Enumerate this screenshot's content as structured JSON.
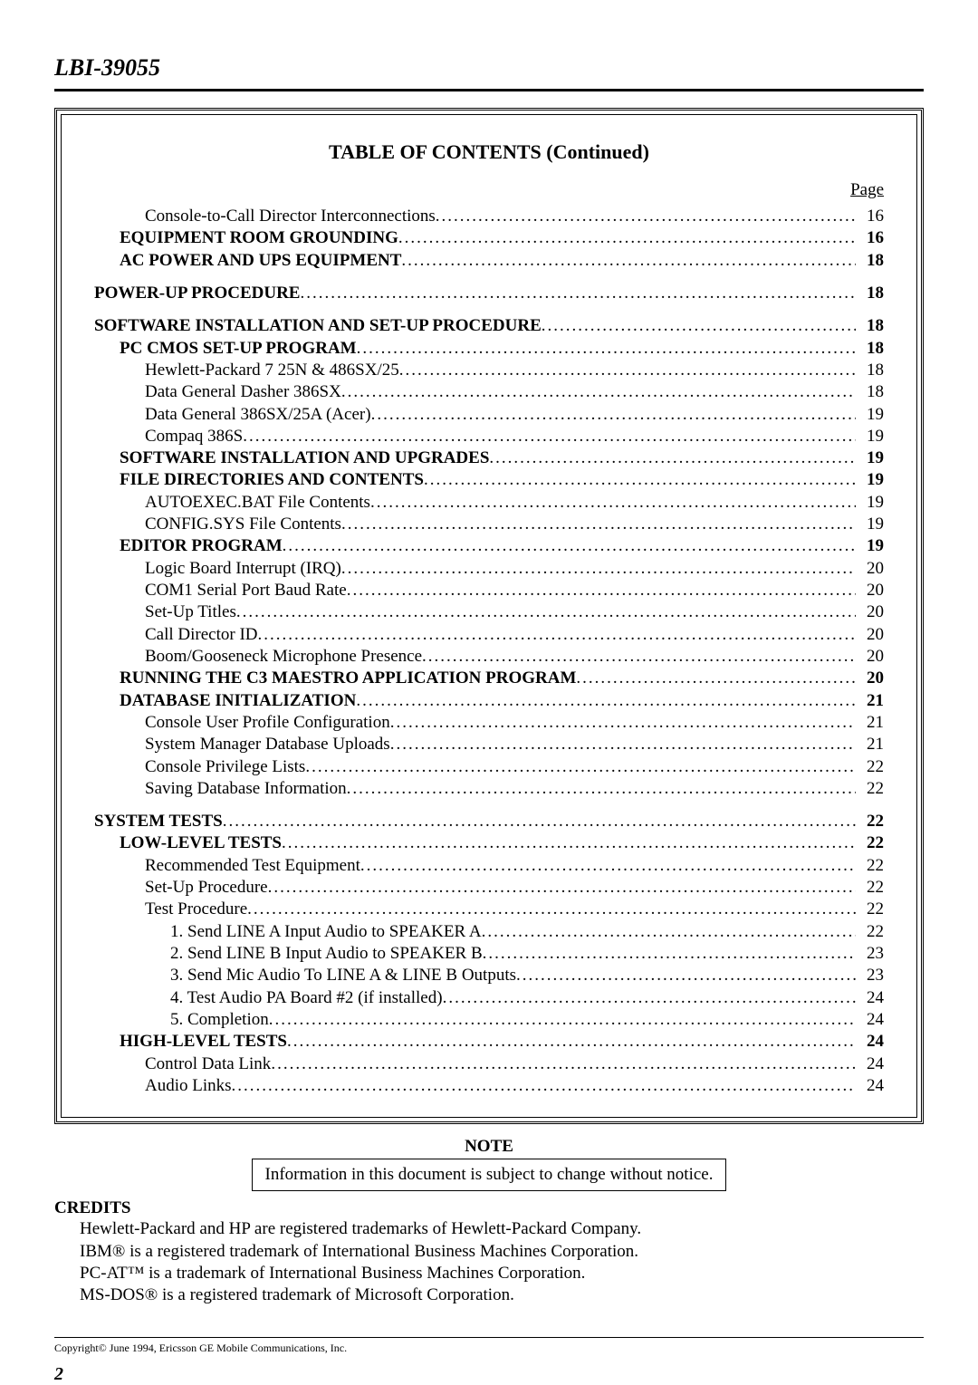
{
  "header": {
    "doc_id": "LBI-39055"
  },
  "toc": {
    "title": "TABLE OF CONTENTS (Continued)",
    "page_label": "Page",
    "entries": [
      {
        "label": "Console-to-Call Director Interconnections",
        "page": "16",
        "indent": 2,
        "bold": false,
        "smallcaps": false,
        "gap": false
      },
      {
        "label": "EQUIPMENT ROOM GROUNDING",
        "page": "16",
        "indent": 1,
        "bold": true,
        "smallcaps": true,
        "gap": false
      },
      {
        "label": "AC POWER AND UPS EQUIPMENT",
        "page": "18",
        "indent": 1,
        "bold": true,
        "smallcaps": true,
        "gap": false
      },
      {
        "label": "POWER-UP PROCEDURE",
        "page": "18",
        "indent": 0,
        "bold": true,
        "smallcaps": false,
        "gap": true
      },
      {
        "label": "SOFTWARE INSTALLATION AND SET-UP PROCEDURE",
        "page": "18",
        "indent": 0,
        "bold": true,
        "smallcaps": false,
        "gap": true
      },
      {
        "label": "PC CMOS SET-UP PROGRAM",
        "page": "18",
        "indent": 1,
        "bold": true,
        "smallcaps": true,
        "gap": false
      },
      {
        "label": "Hewlett-Packard 7 25N & 486SX/25",
        "page": "18",
        "indent": 2,
        "bold": false,
        "smallcaps": false,
        "gap": false
      },
      {
        "label": "Data General Dasher 386SX",
        "page": "18",
        "indent": 2,
        "bold": false,
        "smallcaps": false,
        "gap": false
      },
      {
        "label": "Data General 386SX/25A (Acer)",
        "page": "19",
        "indent": 2,
        "bold": false,
        "smallcaps": false,
        "gap": false
      },
      {
        "label": "Compaq 386S",
        "page": "19",
        "indent": 2,
        "bold": false,
        "smallcaps": false,
        "gap": false
      },
      {
        "label": "SOFTWARE INSTALLATION AND UPGRADES",
        "page": "19",
        "indent": 1,
        "bold": true,
        "smallcaps": true,
        "gap": false
      },
      {
        "label": "FILE DIRECTORIES AND CONTENTS",
        "page": "19",
        "indent": 1,
        "bold": true,
        "smallcaps": true,
        "gap": false
      },
      {
        "label": "AUTOEXEC.BAT File Contents",
        "page": "19",
        "indent": 2,
        "bold": false,
        "smallcaps": false,
        "gap": false
      },
      {
        "label": "CONFIG.SYS File Contents",
        "page": "19",
        "indent": 2,
        "bold": false,
        "smallcaps": false,
        "gap": false
      },
      {
        "label": "EDITOR PROGRAM",
        "page": "19",
        "indent": 1,
        "bold": true,
        "smallcaps": true,
        "gap": false
      },
      {
        "label": "Logic Board Interrupt (IRQ)",
        "page": "20",
        "indent": 2,
        "bold": false,
        "smallcaps": false,
        "gap": false
      },
      {
        "label": "COM1 Serial Port Baud Rate",
        "page": "20",
        "indent": 2,
        "bold": false,
        "smallcaps": false,
        "gap": false
      },
      {
        "label": "Set-Up Titles",
        "page": "20",
        "indent": 2,
        "bold": false,
        "smallcaps": false,
        "gap": false
      },
      {
        "label": "Call Director ID",
        "page": "20",
        "indent": 2,
        "bold": false,
        "smallcaps": false,
        "gap": false
      },
      {
        "label": "Boom/Gooseneck Microphone Presence",
        "page": "20",
        "indent": 2,
        "bold": false,
        "smallcaps": false,
        "gap": false
      },
      {
        "label": "RUNNING THE C3 MAESTRO APPLICATION PROGRAM",
        "page": "20",
        "indent": 1,
        "bold": true,
        "smallcaps": true,
        "gap": false
      },
      {
        "label": "DATABASE INITIALIZATION",
        "page": "21",
        "indent": 1,
        "bold": true,
        "smallcaps": true,
        "gap": false
      },
      {
        "label": "Console User Profile Configuration",
        "page": "21",
        "indent": 2,
        "bold": false,
        "smallcaps": false,
        "gap": false
      },
      {
        "label": "System Manager Database Uploads",
        "page": "21",
        "indent": 2,
        "bold": false,
        "smallcaps": false,
        "gap": false
      },
      {
        "label": "Console Privilege Lists",
        "page": "22",
        "indent": 2,
        "bold": false,
        "smallcaps": false,
        "gap": false
      },
      {
        "label": "Saving Database Information",
        "page": "22",
        "indent": 2,
        "bold": false,
        "smallcaps": false,
        "gap": false
      },
      {
        "label": "SYSTEM TESTS",
        "page": "22",
        "indent": 0,
        "bold": true,
        "smallcaps": false,
        "gap": true
      },
      {
        "label": "LOW-LEVEL TESTS",
        "page": "22",
        "indent": 1,
        "bold": true,
        "smallcaps": true,
        "gap": false
      },
      {
        "label": "Recommended Test Equipment",
        "page": "22",
        "indent": 2,
        "bold": false,
        "smallcaps": false,
        "gap": false
      },
      {
        "label": "Set-Up Procedure",
        "page": "22",
        "indent": 2,
        "bold": false,
        "smallcaps": false,
        "gap": false
      },
      {
        "label": "Test Procedure",
        "page": "22",
        "indent": 2,
        "bold": false,
        "smallcaps": false,
        "gap": false
      },
      {
        "label": "1. Send LINE A Input Audio to SPEAKER A",
        "page": "22",
        "indent": 3,
        "bold": false,
        "smallcaps": false,
        "gap": false
      },
      {
        "label": "2. Send LINE B Input Audio to SPEAKER B",
        "page": "23",
        "indent": 3,
        "bold": false,
        "smallcaps": false,
        "gap": false
      },
      {
        "label": "3. Send Mic Audio To LINE A & LINE B Outputs",
        "page": "23",
        "indent": 3,
        "bold": false,
        "smallcaps": false,
        "gap": false
      },
      {
        "label": "4. Test Audio PA Board #2 (if installed)",
        "page": "24",
        "indent": 3,
        "bold": false,
        "smallcaps": false,
        "gap": false
      },
      {
        "label": "5. Completion",
        "page": "24",
        "indent": 3,
        "bold": false,
        "smallcaps": false,
        "gap": false
      },
      {
        "label": "HIGH-LEVEL TESTS",
        "page": "24",
        "indent": 1,
        "bold": true,
        "smallcaps": true,
        "gap": false
      },
      {
        "label": "Control Data Link",
        "page": "24",
        "indent": 2,
        "bold": false,
        "smallcaps": false,
        "gap": false
      },
      {
        "label": "Audio Links",
        "page": "24",
        "indent": 2,
        "bold": false,
        "smallcaps": false,
        "gap": false
      }
    ]
  },
  "note": {
    "heading": "NOTE",
    "text": "Information in this document is subject to change without notice."
  },
  "credits": {
    "heading": "CREDITS",
    "lines": [
      "Hewlett-Packard and HP are registered trademarks of Hewlett-Packard Company.",
      "IBM® is a registered trademark of International Business Machines Corporation.",
      "PC-AT™ is a trademark of International Business Machines Corporation.",
      "MS-DOS® is a registered trademark of Microsoft Corporation."
    ]
  },
  "footer": {
    "copyright": "Copyright© June 1994, Ericsson GE Mobile Communications, Inc.",
    "page_number": "2"
  }
}
